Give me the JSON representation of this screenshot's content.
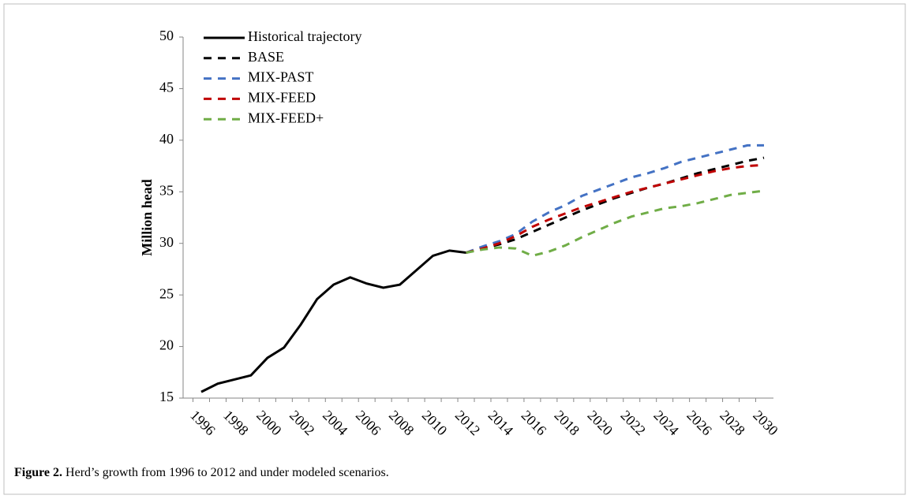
{
  "chart_data": {
    "type": "line",
    "y_label": "Million head",
    "categories": [
      "1996",
      null,
      "1998",
      null,
      "2000",
      null,
      "2002",
      null,
      "2004",
      null,
      "2006",
      null,
      "2008",
      null,
      "2010",
      null,
      "2012",
      null,
      "2014",
      null,
      "2016",
      null,
      "2018",
      null,
      "2020",
      null,
      "2022",
      null,
      "2024",
      null,
      "2026",
      null,
      "2028",
      null,
      "2030"
    ],
    "series": [
      {
        "name": "Historical trajectory",
        "color": "#000000",
        "style": "solid",
        "values": [
          15.6,
          16.4,
          16.8,
          17.2,
          18.9,
          19.9,
          22.1,
          24.6,
          26.0,
          26.7,
          26.1,
          25.7,
          26.0,
          27.4,
          28.8,
          29.3,
          29.1,
          null,
          null,
          null,
          null,
          null,
          null,
          null,
          null,
          null,
          null,
          null,
          null,
          null,
          null,
          null,
          null,
          null,
          null
        ]
      },
      {
        "name": "BASE",
        "color": "#000000",
        "style": "dashed",
        "values": [
          null,
          null,
          null,
          null,
          null,
          null,
          null,
          null,
          null,
          null,
          null,
          null,
          null,
          null,
          null,
          null,
          29.1,
          29.5,
          29.9,
          30.4,
          31.1,
          31.8,
          32.5,
          33.2,
          33.8,
          34.4,
          34.9,
          35.4,
          35.8,
          36.3,
          36.8,
          37.2,
          37.6,
          38.0,
          38.3
        ]
      },
      {
        "name": "MIX-PAST",
        "color": "#4472c4",
        "style": "dashed",
        "values": [
          null,
          null,
          null,
          null,
          null,
          null,
          null,
          null,
          null,
          null,
          null,
          null,
          null,
          null,
          null,
          null,
          29.1,
          29.7,
          30.2,
          30.9,
          32.1,
          33.0,
          33.7,
          34.6,
          35.2,
          35.8,
          36.4,
          36.8,
          37.3,
          37.9,
          38.3,
          38.7,
          39.1,
          39.5,
          39.5
        ]
      },
      {
        "name": "MIX-FEED",
        "color": "#c00000",
        "style": "dashed",
        "values": [
          null,
          null,
          null,
          null,
          null,
          null,
          null,
          null,
          null,
          null,
          null,
          null,
          null,
          null,
          null,
          null,
          29.1,
          29.5,
          30.0,
          30.7,
          31.6,
          32.3,
          32.9,
          33.5,
          34.0,
          34.5,
          35.0,
          35.4,
          35.8,
          36.2,
          36.6,
          37.0,
          37.3,
          37.5,
          37.6
        ]
      },
      {
        "name": "MIX-FEED+",
        "color": "#70ad47",
        "style": "dashed",
        "values": [
          null,
          null,
          null,
          null,
          null,
          null,
          null,
          null,
          null,
          null,
          null,
          null,
          null,
          null,
          null,
          null,
          29.1,
          29.4,
          29.6,
          29.5,
          28.8,
          29.2,
          29.8,
          30.6,
          31.3,
          32.0,
          32.6,
          33.0,
          33.4,
          33.6,
          33.9,
          34.3,
          34.7,
          34.9,
          35.1
        ]
      }
    ],
    "ylim": [
      15,
      50
    ],
    "yticks": [
      15,
      20,
      25,
      30,
      35,
      40,
      45,
      50
    ],
    "grid": false,
    "legend": "top-left"
  },
  "caption": {
    "label": "Figure 2.",
    "text": "Herd’s growth from 1996 to 2012 and under modeled scenarios."
  }
}
